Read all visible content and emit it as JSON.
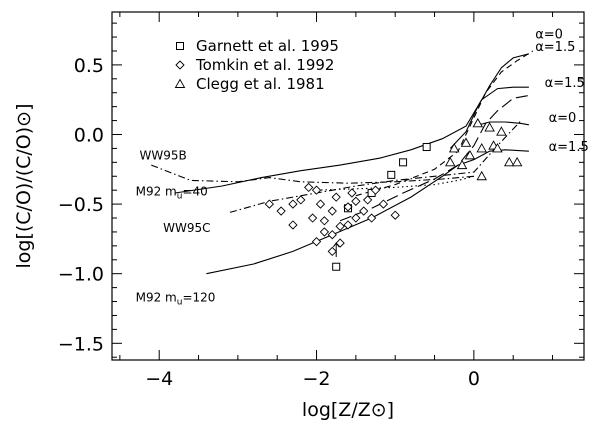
{
  "chart_data": {
    "type": "line",
    "xlabel": "log[Z/Z⊙]",
    "ylabel": "log[(C/O)/(C/O)⊙]",
    "xlim": [
      -4.6,
      1.4
    ],
    "ylim": [
      -1.62,
      0.88
    ],
    "x_ticks": [
      -4,
      -2,
      0
    ],
    "x_tick_labels": [
      "−4",
      "−2",
      "0"
    ],
    "y_ticks": [
      -1.5,
      -1.0,
      -0.5,
      0.0,
      0.5
    ],
    "y_tick_labels": [
      "−1.5",
      "−1.0",
      "−0.5",
      "0.0",
      "0.5"
    ],
    "legend": [
      {
        "marker": "square",
        "label": "Garnett et al. 1995"
      },
      {
        "marker": "diamond",
        "label": "Tomkin et al. 1992"
      },
      {
        "marker": "triangle",
        "label": "Clegg et al. 1981"
      }
    ],
    "series": [
      {
        "key": "ww95b",
        "dash": "dashdot",
        "points": [
          [
            -4.1,
            -0.22
          ],
          [
            -3.6,
            -0.33
          ],
          [
            -3.0,
            -0.34
          ],
          [
            -2.6,
            -0.31
          ],
          [
            -2.2,
            -0.34
          ],
          [
            -1.6,
            -0.35
          ],
          [
            -1.0,
            -0.34
          ],
          [
            -0.4,
            -0.32
          ],
          [
            0.0,
            -0.3
          ]
        ]
      },
      {
        "key": "ww95c",
        "dash": "dashdot",
        "points": [
          [
            -3.1,
            -0.56
          ],
          [
            -2.6,
            -0.48
          ],
          [
            -2.0,
            -0.42
          ],
          [
            -1.5,
            -0.37
          ],
          [
            -1.0,
            -0.33
          ],
          [
            -0.5,
            -0.3
          ],
          [
            0.0,
            -0.27
          ],
          [
            0.3,
            -0.08
          ],
          [
            0.6,
            0.1
          ]
        ]
      },
      {
        "key": "m92_40",
        "dash": "solid",
        "points": [
          [
            -3.8,
            -0.42
          ],
          [
            -3.2,
            -0.37
          ],
          [
            -2.7,
            -0.31
          ],
          [
            -2.2,
            -0.26
          ],
          [
            -1.7,
            -0.22
          ],
          [
            -1.2,
            -0.17
          ],
          [
            -0.8,
            -0.11
          ],
          [
            -0.4,
            -0.03
          ],
          [
            -0.1,
            0.06
          ],
          [
            0.1,
            0.25
          ],
          [
            0.3,
            0.33
          ],
          [
            0.5,
            0.34
          ],
          [
            0.7,
            0.34
          ]
        ]
      },
      {
        "key": "m92_120",
        "dash": "solid",
        "points": [
          [
            -3.4,
            -1.0
          ],
          [
            -2.8,
            -0.93
          ],
          [
            -2.3,
            -0.84
          ],
          [
            -1.8,
            -0.72
          ],
          [
            -1.3,
            -0.6
          ],
          [
            -0.8,
            -0.45
          ],
          [
            -0.4,
            -0.3
          ],
          [
            -0.2,
            -0.22
          ],
          [
            0.0,
            -0.18
          ],
          [
            0.2,
            -0.12
          ],
          [
            0.4,
            -0.11
          ],
          [
            0.7,
            -0.12
          ]
        ]
      },
      {
        "key": "long_dash",
        "dash": "longdash",
        "points": [
          [
            -1.7,
            -0.62
          ],
          [
            -1.3,
            -0.53
          ],
          [
            -0.9,
            -0.42
          ],
          [
            -0.5,
            -0.32
          ],
          [
            -0.2,
            -0.22
          ],
          [
            0.0,
            -0.08
          ],
          [
            0.15,
            0.08
          ],
          [
            0.3,
            0.17
          ],
          [
            0.5,
            0.26
          ],
          [
            0.7,
            0.28
          ]
        ]
      },
      {
        "key": "short_dash",
        "dash": "dash",
        "points": [
          [
            -1.5,
            -0.44
          ],
          [
            -1.0,
            -0.36
          ],
          [
            -0.5,
            -0.25
          ],
          [
            -0.2,
            -0.12
          ],
          [
            0.0,
            0.12
          ],
          [
            0.15,
            0.3
          ],
          [
            0.35,
            0.45
          ],
          [
            0.55,
            0.53
          ],
          [
            0.75,
            0.6
          ]
        ]
      },
      {
        "key": "dotted",
        "dash": "dot",
        "points": [
          [
            -2.0,
            -0.4
          ],
          [
            -1.5,
            -0.39
          ],
          [
            -1.0,
            -0.38
          ],
          [
            -0.5,
            -0.36
          ],
          [
            -0.2,
            -0.33
          ],
          [
            0.0,
            -0.3
          ]
        ]
      },
      {
        "key": "top_solid",
        "dash": "solid",
        "points": [
          [
            -0.3,
            -0.1
          ],
          [
            -0.1,
            0.02
          ],
          [
            0.05,
            0.2
          ],
          [
            0.2,
            0.35
          ],
          [
            0.35,
            0.48
          ],
          [
            0.5,
            0.55
          ],
          [
            0.7,
            0.58
          ]
        ]
      },
      {
        "key": "alpha0_low",
        "dash": "solid",
        "points": [
          [
            0.0,
            0.06
          ],
          [
            0.2,
            0.09
          ],
          [
            0.4,
            0.09
          ],
          [
            0.6,
            0.08
          ],
          [
            0.7,
            0.07
          ]
        ]
      }
    ],
    "series_labels": [
      {
        "text": "WW95B",
        "x": -4.25,
        "y": -0.18
      },
      {
        "text": "M92 m",
        "sub": "u",
        "rest": "=40",
        "x": -4.3,
        "y": -0.44
      },
      {
        "text": "WW95C",
        "x": -3.95,
        "y": -0.7
      },
      {
        "text": "M92 m",
        "sub": "u",
        "rest": "=120",
        "x": -4.3,
        "y": -1.2
      }
    ],
    "alpha_labels": [
      {
        "text": "α=0",
        "x": 0.78,
        "y": 0.69
      },
      {
        "text": "α=1.5",
        "x": 0.78,
        "y": 0.6
      },
      {
        "text": "α=1.5",
        "x": 0.9,
        "y": 0.34
      },
      {
        "text": "α=0",
        "x": 0.95,
        "y": 0.09
      },
      {
        "text": "α=1.5",
        "x": 0.95,
        "y": -0.12
      }
    ],
    "points_garnett": [
      [
        -1.75,
        -0.95
      ],
      [
        -1.05,
        -0.29
      ],
      [
        -0.9,
        -0.2
      ],
      [
        -0.6,
        -0.09
      ],
      [
        -1.6,
        -0.53
      ],
      [
        -1.3,
        -0.42
      ]
    ],
    "upper_limit_arrow": {
      "x": -1.75,
      "y": -0.88
    },
    "points_tomkin": [
      [
        -2.6,
        -0.5
      ],
      [
        -2.45,
        -0.55
      ],
      [
        -2.3,
        -0.5
      ],
      [
        -2.2,
        -0.47
      ],
      [
        -2.1,
        -0.38
      ],
      [
        -2.0,
        -0.4
      ],
      [
        -1.95,
        -0.5
      ],
      [
        -2.05,
        -0.6
      ],
      [
        -1.9,
        -0.62
      ],
      [
        -1.8,
        -0.55
      ],
      [
        -1.75,
        -0.45
      ],
      [
        -1.6,
        -0.52
      ],
      [
        -1.5,
        -0.48
      ],
      [
        -1.4,
        -0.55
      ],
      [
        -1.3,
        -0.6
      ],
      [
        -1.25,
        -0.4
      ],
      [
        -1.15,
        -0.5
      ],
      [
        -1.0,
        -0.58
      ],
      [
        -1.9,
        -0.7
      ],
      [
        -1.8,
        -0.72
      ],
      [
        -1.7,
        -0.66
      ],
      [
        -1.6,
        -0.65
      ],
      [
        -1.5,
        -0.6
      ],
      [
        -1.8,
        -0.84
      ],
      [
        -1.7,
        -0.78
      ],
      [
        -2.0,
        -0.77
      ],
      [
        -2.3,
        -0.65
      ],
      [
        -1.55,
        -0.42
      ],
      [
        -1.35,
        -0.47
      ]
    ],
    "points_clegg": [
      [
        -0.3,
        -0.2
      ],
      [
        -0.15,
        -0.22
      ],
      [
        -0.05,
        -0.15
      ],
      [
        0.05,
        0.08
      ],
      [
        0.1,
        -0.1
      ],
      [
        0.2,
        0.05
      ],
      [
        0.35,
        0.02
      ],
      [
        0.45,
        -0.2
      ],
      [
        0.55,
        -0.2
      ],
      [
        0.1,
        -0.3
      ],
      [
        0.25,
        -0.08
      ],
      [
        -0.1,
        -0.06
      ],
      [
        -0.25,
        -0.1
      ],
      [
        0.3,
        -0.1
      ]
    ]
  }
}
